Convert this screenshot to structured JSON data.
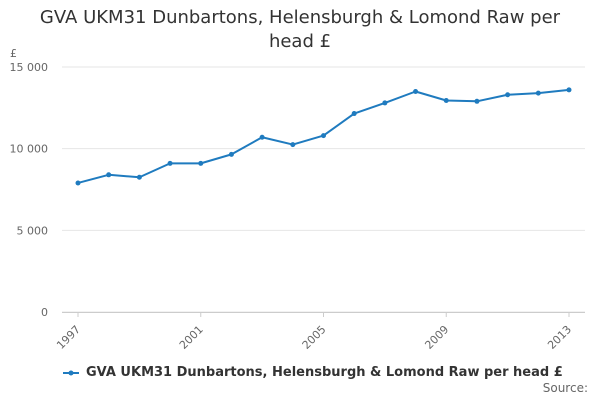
{
  "title_line1": "GVA UKM31 Dunbartons, Helensburgh & Lomond Raw per",
  "title_line2": "head £",
  "source_label": "Source:",
  "colors": {
    "series": "#1f7bbf",
    "grid": "#e6e6e6",
    "axis": "#cccccc",
    "text": "#333333",
    "tick_text": "#666666"
  },
  "legend_icon": "line-marker-icon",
  "chart_data": {
    "type": "line",
    "title": "GVA UKM31 Dunbartons, Helensburgh & Lomond Raw per head £",
    "ylabel": "£",
    "xlabel": "",
    "ylim": [
      0,
      15000
    ],
    "xlim": [
      1997,
      2013
    ],
    "y_ticks": [
      0,
      5000,
      10000,
      15000
    ],
    "y_tick_labels": [
      "0",
      "5 000",
      "10 000",
      "15 000"
    ],
    "x_ticks": [
      1997,
      2001,
      2005,
      2009,
      2013
    ],
    "x_tick_labels": [
      "1997",
      "2001",
      "2005",
      "2009",
      "2013"
    ],
    "grid": true,
    "legend_position": "bottom-left",
    "series": [
      {
        "name": "GVA UKM31 Dunbartons, Helensburgh & Lomond Raw per head £",
        "x": [
          1997,
          1998,
          1999,
          2000,
          2001,
          2002,
          2003,
          2004,
          2005,
          2006,
          2007,
          2008,
          2009,
          2010,
          2011,
          2012,
          2013
        ],
        "values": [
          7900,
          8400,
          8250,
          9100,
          9100,
          9650,
          10700,
          10250,
          10800,
          12150,
          12800,
          13500,
          12950,
          12900,
          13300,
          13400,
          13600
        ]
      }
    ]
  }
}
